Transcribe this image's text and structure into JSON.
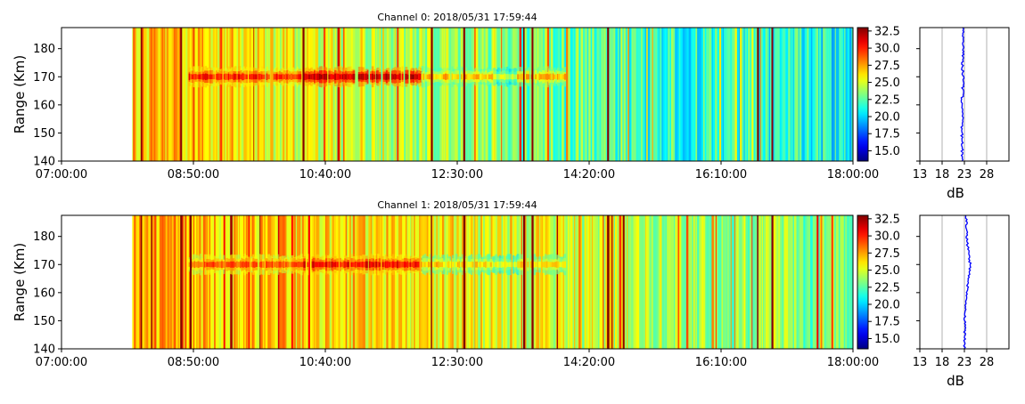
{
  "figure_type": "range-time intensity plots with mean power profiles",
  "colormap": "jet",
  "chart_data": [
    {
      "type": "heatmap",
      "title": "Channel 0: 2018/05/31 17:59:44",
      "xlabel": "",
      "ylabel": "Range (Km)",
      "x_range_minutes": [
        420,
        1080
      ],
      "x_ticks": [
        "07:00:00",
        "08:50:00",
        "10:40:00",
        "12:30:00",
        "14:20:00",
        "16:10:00",
        "18:00:00"
      ],
      "ylim": [
        140,
        187.5
      ],
      "y_ticks": [
        140,
        150,
        160,
        170,
        180
      ],
      "data_start_minutes": 479,
      "background_db": {
        "time_minutes": [
          479,
          520,
          600,
          700,
          780,
          840,
          900,
          960,
          1020,
          1080
        ],
        "values": [
          27,
          26.5,
          25.5,
          24.5,
          23.5,
          22.5,
          22,
          21.5,
          21.5,
          21
        ]
      },
      "echo_band": {
        "center_km": 170,
        "segments": [
          {
            "start_minutes": 526,
            "end_minutes": 620,
            "peak_db": 30
          },
          {
            "start_minutes": 620,
            "end_minutes": 720,
            "peak_db": 31.5
          },
          {
            "start_minutes": 720,
            "end_minutes": 780,
            "peak_db": 27
          },
          {
            "start_minutes": 780,
            "end_minutes": 800,
            "peak_db": 24.5
          },
          {
            "start_minutes": 800,
            "end_minutes": 840,
            "peak_db": 27
          }
        ]
      },
      "strong_columns_minutes": [
        486,
        519,
        621,
        728,
        755,
        805,
        812,
        875,
        1000,
        1012
      ],
      "colorbar": {
        "min": 13.5,
        "max": 33,
        "ticks": [
          15.0,
          17.5,
          20.0,
          22.5,
          25.0,
          27.5,
          30.0,
          32.5
        ]
      }
    },
    {
      "type": "heatmap",
      "title": "Channel 1: 2018/05/31 17:59:44",
      "xlabel": "",
      "ylabel": "Range (Km)",
      "x_range_minutes": [
        420,
        1080
      ],
      "x_ticks": [
        "07:00:00",
        "08:50:00",
        "10:40:00",
        "12:30:00",
        "14:20:00",
        "16:10:00",
        "18:00:00"
      ],
      "ylim": [
        140,
        187.5
      ],
      "y_ticks": [
        140,
        150,
        160,
        170,
        180
      ],
      "data_start_minutes": 479,
      "background_db": {
        "time_minutes": [
          479,
          520,
          600,
          700,
          780,
          840,
          900,
          960,
          1020,
          1080
        ],
        "values": [
          27.5,
          27,
          26.5,
          26,
          25.5,
          25,
          24.5,
          24,
          23.5,
          23
        ]
      },
      "echo_band": {
        "center_km": 170,
        "segments": [
          {
            "start_minutes": 526,
            "end_minutes": 620,
            "peak_db": 29
          },
          {
            "start_minutes": 620,
            "end_minutes": 720,
            "peak_db": 30.5
          },
          {
            "start_minutes": 720,
            "end_minutes": 780,
            "peak_db": 26.5
          },
          {
            "start_minutes": 780,
            "end_minutes": 800,
            "peak_db": 25
          },
          {
            "start_minutes": 800,
            "end_minutes": 840,
            "peak_db": 26.5
          }
        ]
      },
      "strong_columns_minutes": [
        486,
        519,
        527,
        728,
        755,
        805,
        812,
        875,
        888,
        1000,
        1012
      ],
      "colorbar": {
        "min": 13.5,
        "max": 33,
        "ticks": [
          15.0,
          17.5,
          20.0,
          22.5,
          25.0,
          27.5,
          30.0,
          32.5
        ]
      }
    },
    {
      "type": "line",
      "xlabel": "dB",
      "xlim": [
        13,
        33
      ],
      "x_ticks": [
        13,
        18,
        23,
        28
      ],
      "ylim": [
        140,
        187.5
      ],
      "grid": "vertical",
      "color": "#0000ff",
      "series": [
        {
          "range_km": [
            140,
            145,
            150,
            155,
            160,
            165,
            170,
            175,
            180,
            185,
            187.5
          ],
          "db": [
            22.6,
            22.5,
            22.4,
            22.5,
            22.4,
            22.6,
            22.7,
            22.5,
            22.8,
            22.7,
            22.6
          ]
        }
      ]
    },
    {
      "type": "line",
      "xlabel": "dB",
      "xlim": [
        13,
        33
      ],
      "x_ticks": [
        13,
        18,
        23,
        28
      ],
      "ylim": [
        140,
        187.5
      ],
      "grid": "vertical",
      "color": "#0000ff",
      "series": [
        {
          "range_km": [
            140,
            145,
            150,
            155,
            160,
            165,
            170,
            175,
            180,
            185,
            187.5
          ],
          "db": [
            23.1,
            23.0,
            23.1,
            23.3,
            23.5,
            24.0,
            24.3,
            23.8,
            23.6,
            23.4,
            23.3
          ]
        }
      ]
    }
  ]
}
